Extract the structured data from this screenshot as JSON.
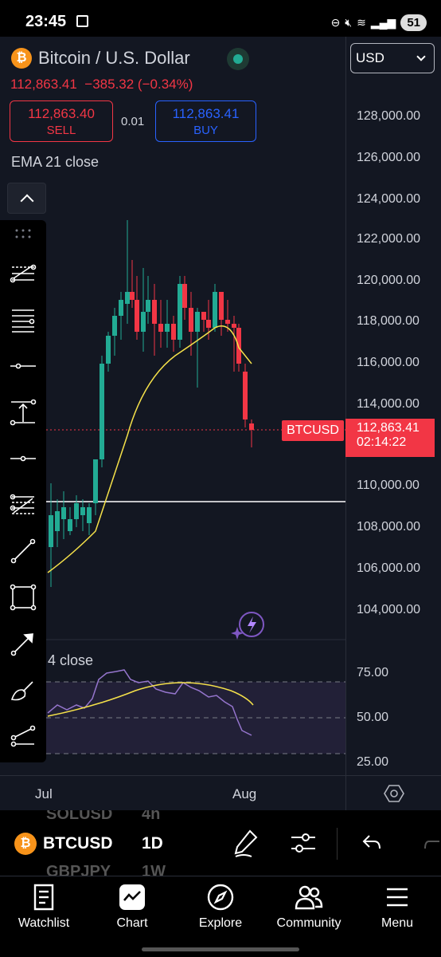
{
  "status_bar": {
    "time": "23:45",
    "battery": "51"
  },
  "header": {
    "symbol_title": "Bitcoin / U.S. Dollar",
    "currency": "USD",
    "last_price": "112,863.41",
    "change": "−385.32 (−0.34%)",
    "sell_price": "112,863.40",
    "sell_label": "SELL",
    "buy_price": "112,863.41",
    "buy_label": "BUY",
    "spread": "0.01"
  },
  "indicators": {
    "ema": "EMA 21 close",
    "rsi": "4 close"
  },
  "price_axis": [
    "128,000.00",
    "126,000.00",
    "124,000.00",
    "122,000.00",
    "120,000.00",
    "118,000.00",
    "116,000.00",
    "114,000.00",
    "110,000.00",
    "108,000.00",
    "106,000.00",
    "104,000.00"
  ],
  "current_price_tag": {
    "symbol": "BTCUSD",
    "price": "112,863.41",
    "countdown": "02:14:22"
  },
  "rsi_axis": [
    "75.00",
    "50.00",
    "25.00"
  ],
  "time_axis": [
    "Jul",
    "Aug"
  ],
  "bottom_bar": {
    "symbol": "BTCUSD",
    "interval": "1D",
    "ghost_above": "SOLUSD",
    "ghost_above_int": "4h",
    "ghost_below": "GBPJPY",
    "ghost_below_int": "1W"
  },
  "nav": [
    {
      "label": "Watchlist",
      "icon": "watchlist-icon"
    },
    {
      "label": "Chart",
      "icon": "chart-icon"
    },
    {
      "label": "Explore",
      "icon": "compass-icon"
    },
    {
      "label": "Community",
      "icon": "community-icon"
    },
    {
      "label": "Menu",
      "icon": "menu-icon"
    }
  ],
  "colors": {
    "up": "#22ab94",
    "down": "#f23645",
    "ema": "#f5e14a",
    "rsi": "#7e57c2",
    "accent": "#2962ff",
    "bg": "#131722"
  }
}
